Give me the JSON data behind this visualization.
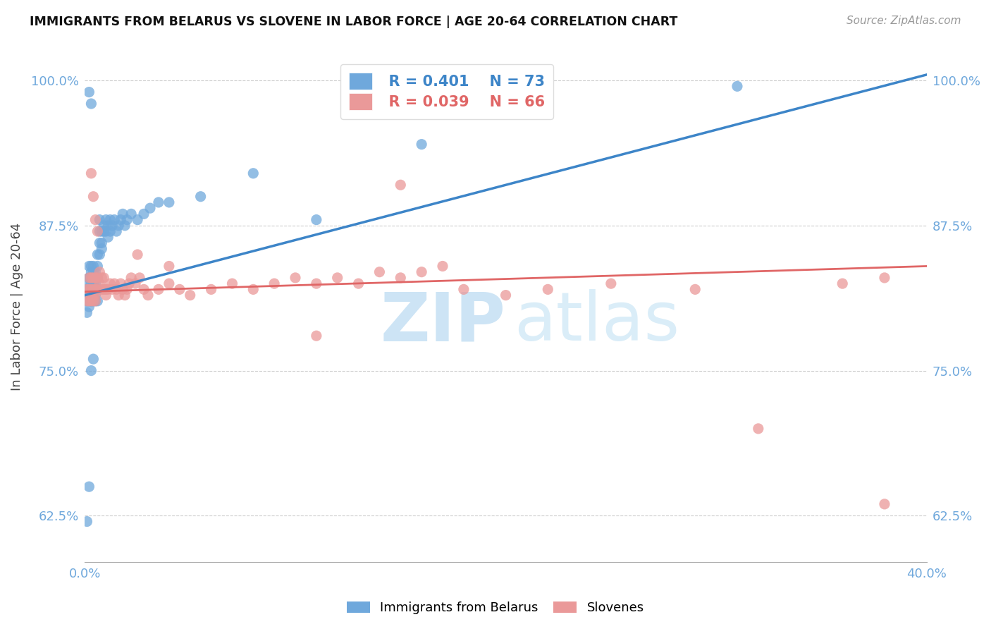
{
  "title": "IMMIGRANTS FROM BELARUS VS SLOVENE IN LABOR FORCE | AGE 20-64 CORRELATION CHART",
  "source": "Source: ZipAtlas.com",
  "ylabel": "In Labor Force | Age 20-64",
  "xlim": [
    0.0,
    0.4
  ],
  "ylim": [
    0.585,
    1.025
  ],
  "yticks": [
    0.625,
    0.75,
    0.875,
    1.0
  ],
  "yticklabels": [
    "62.5%",
    "75.0%",
    "87.5%",
    "100.0%"
  ],
  "legend_R_belarus": "R = 0.401",
  "legend_N_belarus": "N = 73",
  "legend_R_slovene": "R = 0.039",
  "legend_N_slovene": "N = 66",
  "color_belarus": "#6fa8dc",
  "color_slovene": "#ea9999",
  "color_line_belarus": "#3d85c8",
  "color_line_slovene": "#e06666",
  "color_tick": "#6fa8dc",
  "bel_line_x0": 0.0,
  "bel_line_y0": 0.815,
  "bel_line_x1": 0.4,
  "bel_line_y1": 1.005,
  "slov_line_x0": 0.0,
  "slov_line_y0": 0.818,
  "slov_line_x1": 0.4,
  "slov_line_y1": 0.84,
  "bel_x": [
    0.001,
    0.001,
    0.001,
    0.001,
    0.001,
    0.002,
    0.002,
    0.002,
    0.002,
    0.002,
    0.002,
    0.002,
    0.002,
    0.003,
    0.003,
    0.003,
    0.003,
    0.003,
    0.003,
    0.003,
    0.003,
    0.003,
    0.004,
    0.004,
    0.004,
    0.004,
    0.004,
    0.004,
    0.004,
    0.005,
    0.005,
    0.005,
    0.005,
    0.005,
    0.006,
    0.006,
    0.006,
    0.006,
    0.006,
    0.007,
    0.007,
    0.007,
    0.007,
    0.008,
    0.008,
    0.008,
    0.009,
    0.009,
    0.01,
    0.01,
    0.011,
    0.011,
    0.012,
    0.012,
    0.013,
    0.014,
    0.015,
    0.016,
    0.017,
    0.018,
    0.019,
    0.02,
    0.022,
    0.025,
    0.028,
    0.031,
    0.035,
    0.04,
    0.055,
    0.08,
    0.11,
    0.16,
    0.31
  ],
  "bel_y": [
    0.82,
    0.81,
    0.8,
    0.815,
    0.825,
    0.81,
    0.82,
    0.83,
    0.815,
    0.805,
    0.82,
    0.83,
    0.84,
    0.81,
    0.82,
    0.83,
    0.84,
    0.815,
    0.82,
    0.81,
    0.825,
    0.835,
    0.82,
    0.83,
    0.815,
    0.825,
    0.835,
    0.84,
    0.81,
    0.825,
    0.835,
    0.82,
    0.815,
    0.81,
    0.83,
    0.84,
    0.85,
    0.82,
    0.81,
    0.87,
    0.86,
    0.88,
    0.85,
    0.86,
    0.87,
    0.855,
    0.87,
    0.875,
    0.87,
    0.88,
    0.875,
    0.865,
    0.88,
    0.87,
    0.875,
    0.88,
    0.87,
    0.875,
    0.88,
    0.885,
    0.875,
    0.88,
    0.885,
    0.88,
    0.885,
    0.89,
    0.895,
    0.895,
    0.9,
    0.92,
    0.88,
    0.945,
    0.995
  ],
  "bel_outlier_x": [
    0.001,
    0.002,
    0.003,
    0.004,
    0.002,
    0.003
  ],
  "bel_outlier_y": [
    0.62,
    0.65,
    0.75,
    0.76,
    0.99,
    0.98
  ],
  "slov_x": [
    0.001,
    0.001,
    0.002,
    0.002,
    0.002,
    0.003,
    0.003,
    0.003,
    0.003,
    0.004,
    0.004,
    0.004,
    0.004,
    0.005,
    0.005,
    0.005,
    0.005,
    0.006,
    0.006,
    0.007,
    0.007,
    0.008,
    0.008,
    0.009,
    0.009,
    0.01,
    0.01,
    0.011,
    0.012,
    0.013,
    0.014,
    0.015,
    0.016,
    0.017,
    0.018,
    0.019,
    0.02,
    0.021,
    0.022,
    0.024,
    0.026,
    0.028,
    0.03,
    0.035,
    0.04,
    0.045,
    0.05,
    0.06,
    0.07,
    0.08,
    0.09,
    0.1,
    0.11,
    0.12,
    0.13,
    0.14,
    0.15,
    0.16,
    0.17,
    0.2,
    0.22,
    0.25,
    0.29,
    0.36,
    0.38,
    0.15
  ],
  "slov_y": [
    0.82,
    0.81,
    0.82,
    0.81,
    0.83,
    0.81,
    0.82,
    0.83,
    0.815,
    0.82,
    0.81,
    0.83,
    0.815,
    0.82,
    0.81,
    0.83,
    0.815,
    0.82,
    0.83,
    0.825,
    0.835,
    0.82,
    0.83,
    0.82,
    0.83,
    0.82,
    0.815,
    0.82,
    0.825,
    0.82,
    0.825,
    0.82,
    0.815,
    0.825,
    0.82,
    0.815,
    0.82,
    0.825,
    0.83,
    0.825,
    0.83,
    0.82,
    0.815,
    0.82,
    0.825,
    0.82,
    0.815,
    0.82,
    0.825,
    0.82,
    0.825,
    0.83,
    0.825,
    0.83,
    0.825,
    0.835,
    0.83,
    0.835,
    0.84,
    0.815,
    0.82,
    0.825,
    0.82,
    0.825,
    0.83,
    0.91
  ],
  "slov_outlier_x": [
    0.003,
    0.004,
    0.005,
    0.006,
    0.025,
    0.04,
    0.11,
    0.18,
    0.32,
    0.38
  ],
  "slov_outlier_y": [
    0.92,
    0.9,
    0.88,
    0.87,
    0.85,
    0.84,
    0.78,
    0.82,
    0.7,
    0.635
  ]
}
